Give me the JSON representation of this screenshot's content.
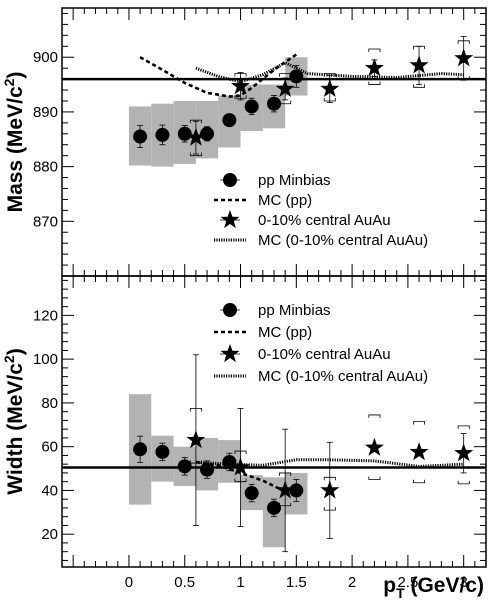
{
  "chart_data": [
    {
      "type": "scatter",
      "panel": "top",
      "ylabel": "Mass (MeV/c²)",
      "ylabel_main": "Mass (MeV/c",
      "ylabel_sup": "2",
      "ylabel_close": ")",
      "xlim": [
        -0.6,
        3.2
      ],
      "ylim": [
        860,
        909
      ],
      "yticks": [
        870,
        880,
        890,
        900
      ],
      "reference_line": 896,
      "grid": false,
      "legend_position": "center-right",
      "legend": [
        {
          "label": "pp Minbias",
          "marker": "circle"
        },
        {
          "label": "MC (pp)",
          "marker": "dashed-line"
        },
        {
          "label": "0-10% central AuAu",
          "marker": "star"
        },
        {
          "label": "MC (0-10% central AuAu)",
          "marker": "dotted-line"
        }
      ],
      "series": [
        {
          "name": "pp Minbias",
          "marker": "circle",
          "x": [
            0.1,
            0.3,
            0.5,
            0.7,
            0.9,
            1.1,
            1.3,
            1.5
          ],
          "y": [
            885.5,
            885.8,
            886.0,
            886.0,
            888.5,
            891.0,
            891.5,
            896.5
          ],
          "err": [
            2.0,
            1.8,
            1.5,
            1.3,
            1.0,
            1.5,
            1.5,
            2.0
          ],
          "sys_low": [
            880.2,
            880.0,
            880.5,
            881.5,
            883.5,
            886.5,
            887.0,
            893.0
          ],
          "sys_high": [
            891.0,
            891.5,
            892.0,
            892.0,
            893.0,
            895.0,
            895.0,
            900.0
          ]
        },
        {
          "name": "0-10% central AuAu",
          "marker": "star",
          "x": [
            0.6,
            1.0,
            1.4,
            1.8,
            2.2,
            2.6,
            3.0
          ],
          "y": [
            885.3,
            894.7,
            894.2,
            894.2,
            898.0,
            898.5,
            899.8
          ],
          "err": [
            3.0,
            2.5,
            2.0,
            2.5,
            1.5,
            3.5,
            4.0
          ],
          "sys_low": [
            882.0,
            892.5,
            891.5,
            892.0,
            895.0,
            894.5,
            896.0
          ],
          "sys_high": [
            888.5,
            897.0,
            897.0,
            897.0,
            901.5,
            902.0,
            903.0
          ]
        },
        {
          "name": "MC (pp)",
          "style": "dashed",
          "x": [
            0.1,
            0.3,
            0.5,
            0.7,
            0.9,
            1.0,
            1.1,
            1.3,
            1.5
          ],
          "y": [
            900.0,
            897.7,
            895.3,
            893.5,
            892.8,
            893.0,
            894.4,
            897.7,
            900.5
          ]
        },
        {
          "name": "MC (0-10% central AuAu)",
          "style": "dotted",
          "x": [
            0.6,
            0.8,
            1.0,
            1.2,
            1.4,
            1.6,
            2.0,
            2.4,
            2.8,
            3.0
          ],
          "y": [
            898.0,
            896.5,
            895.5,
            896.8,
            899.0,
            897.0,
            896.5,
            896.3,
            897.0,
            896.8
          ]
        }
      ]
    },
    {
      "type": "scatter",
      "panel": "bottom",
      "xlabel": "p_T (GeV/c)",
      "xlabel_main": "p",
      "xlabel_sub": "T",
      "xlabel_rest": " (GeV/c)",
      "ylabel": "Width (MeV/c²)",
      "ylabel_main": "Width (MeV/c",
      "ylabel_sup": "2",
      "ylabel_close": ")",
      "xlim": [
        -0.6,
        3.2
      ],
      "ylim": [
        5,
        138
      ],
      "xticks": [
        0,
        0.5,
        1,
        1.5,
        2,
        2.5,
        3
      ],
      "xtick_labels": [
        "0",
        "0.5",
        "1",
        "1.5",
        "2",
        "2.5",
        "3"
      ],
      "yticks": [
        20,
        40,
        60,
        80,
        100,
        120
      ],
      "reference_line": 50.5,
      "grid": false,
      "legend_position": "top-right",
      "legend": [
        {
          "label": "pp Minbias",
          "marker": "circle"
        },
        {
          "label": "MC (pp)",
          "marker": "dashed-line"
        },
        {
          "label": "0-10% central AuAu",
          "marker": "star"
        },
        {
          "label": "MC (0-10% central AuAu)",
          "marker": "dotted-line"
        }
      ],
      "series": [
        {
          "name": "pp Minbias",
          "marker": "circle",
          "x": [
            0.1,
            0.3,
            0.5,
            0.7,
            0.9,
            1.1,
            1.3,
            1.5
          ],
          "y": [
            58.8,
            57.6,
            51.0,
            49.5,
            53.0,
            38.8,
            32.0,
            40.0
          ],
          "err": [
            6.0,
            4.0,
            4.0,
            4.0,
            4.0,
            4.0,
            4.0,
            5.0
          ],
          "sys_low": [
            33.5,
            44.0,
            42.0,
            40.0,
            43.5,
            31.0,
            14.0,
            29.0
          ],
          "sys_high": [
            84.0,
            65.0,
            60.0,
            64.0,
            63.0,
            47.0,
            46.0,
            48.0
          ]
        },
        {
          "name": "0-10% central AuAu",
          "marker": "star",
          "x": [
            0.6,
            1.0,
            1.4,
            1.8,
            2.2,
            2.6,
            3.0
          ],
          "y": [
            63.0,
            50.5,
            40.0,
            40.0,
            59.5,
            57.5,
            57.0
          ],
          "err": [
            39.0,
            27.0,
            28.0,
            22.0,
            0,
            0,
            9.0
          ],
          "sys_low": [
            52.5,
            44.0,
            33.0,
            31.0,
            45.0,
            43.5,
            43.0
          ],
          "sys_high": [
            77.5,
            58.0,
            48.0,
            46.0,
            74.5,
            71.5,
            69.5
          ]
        },
        {
          "name": "MC (pp)",
          "style": "dashed",
          "x": [
            0.6,
            0.8,
            1.0,
            1.2,
            1.4
          ],
          "y": [
            53.0,
            51.5,
            48.0,
            44.5,
            39.5
          ]
        },
        {
          "name": "MC (0-10% central AuAu)",
          "style": "dotted",
          "x": [
            0.6,
            0.9,
            1.2,
            1.5,
            1.8,
            2.2,
            2.6,
            3.0
          ],
          "y": [
            52.8,
            52.0,
            51.5,
            54.0,
            54.0,
            53.5,
            51.0,
            52.0
          ]
        }
      ]
    }
  ]
}
